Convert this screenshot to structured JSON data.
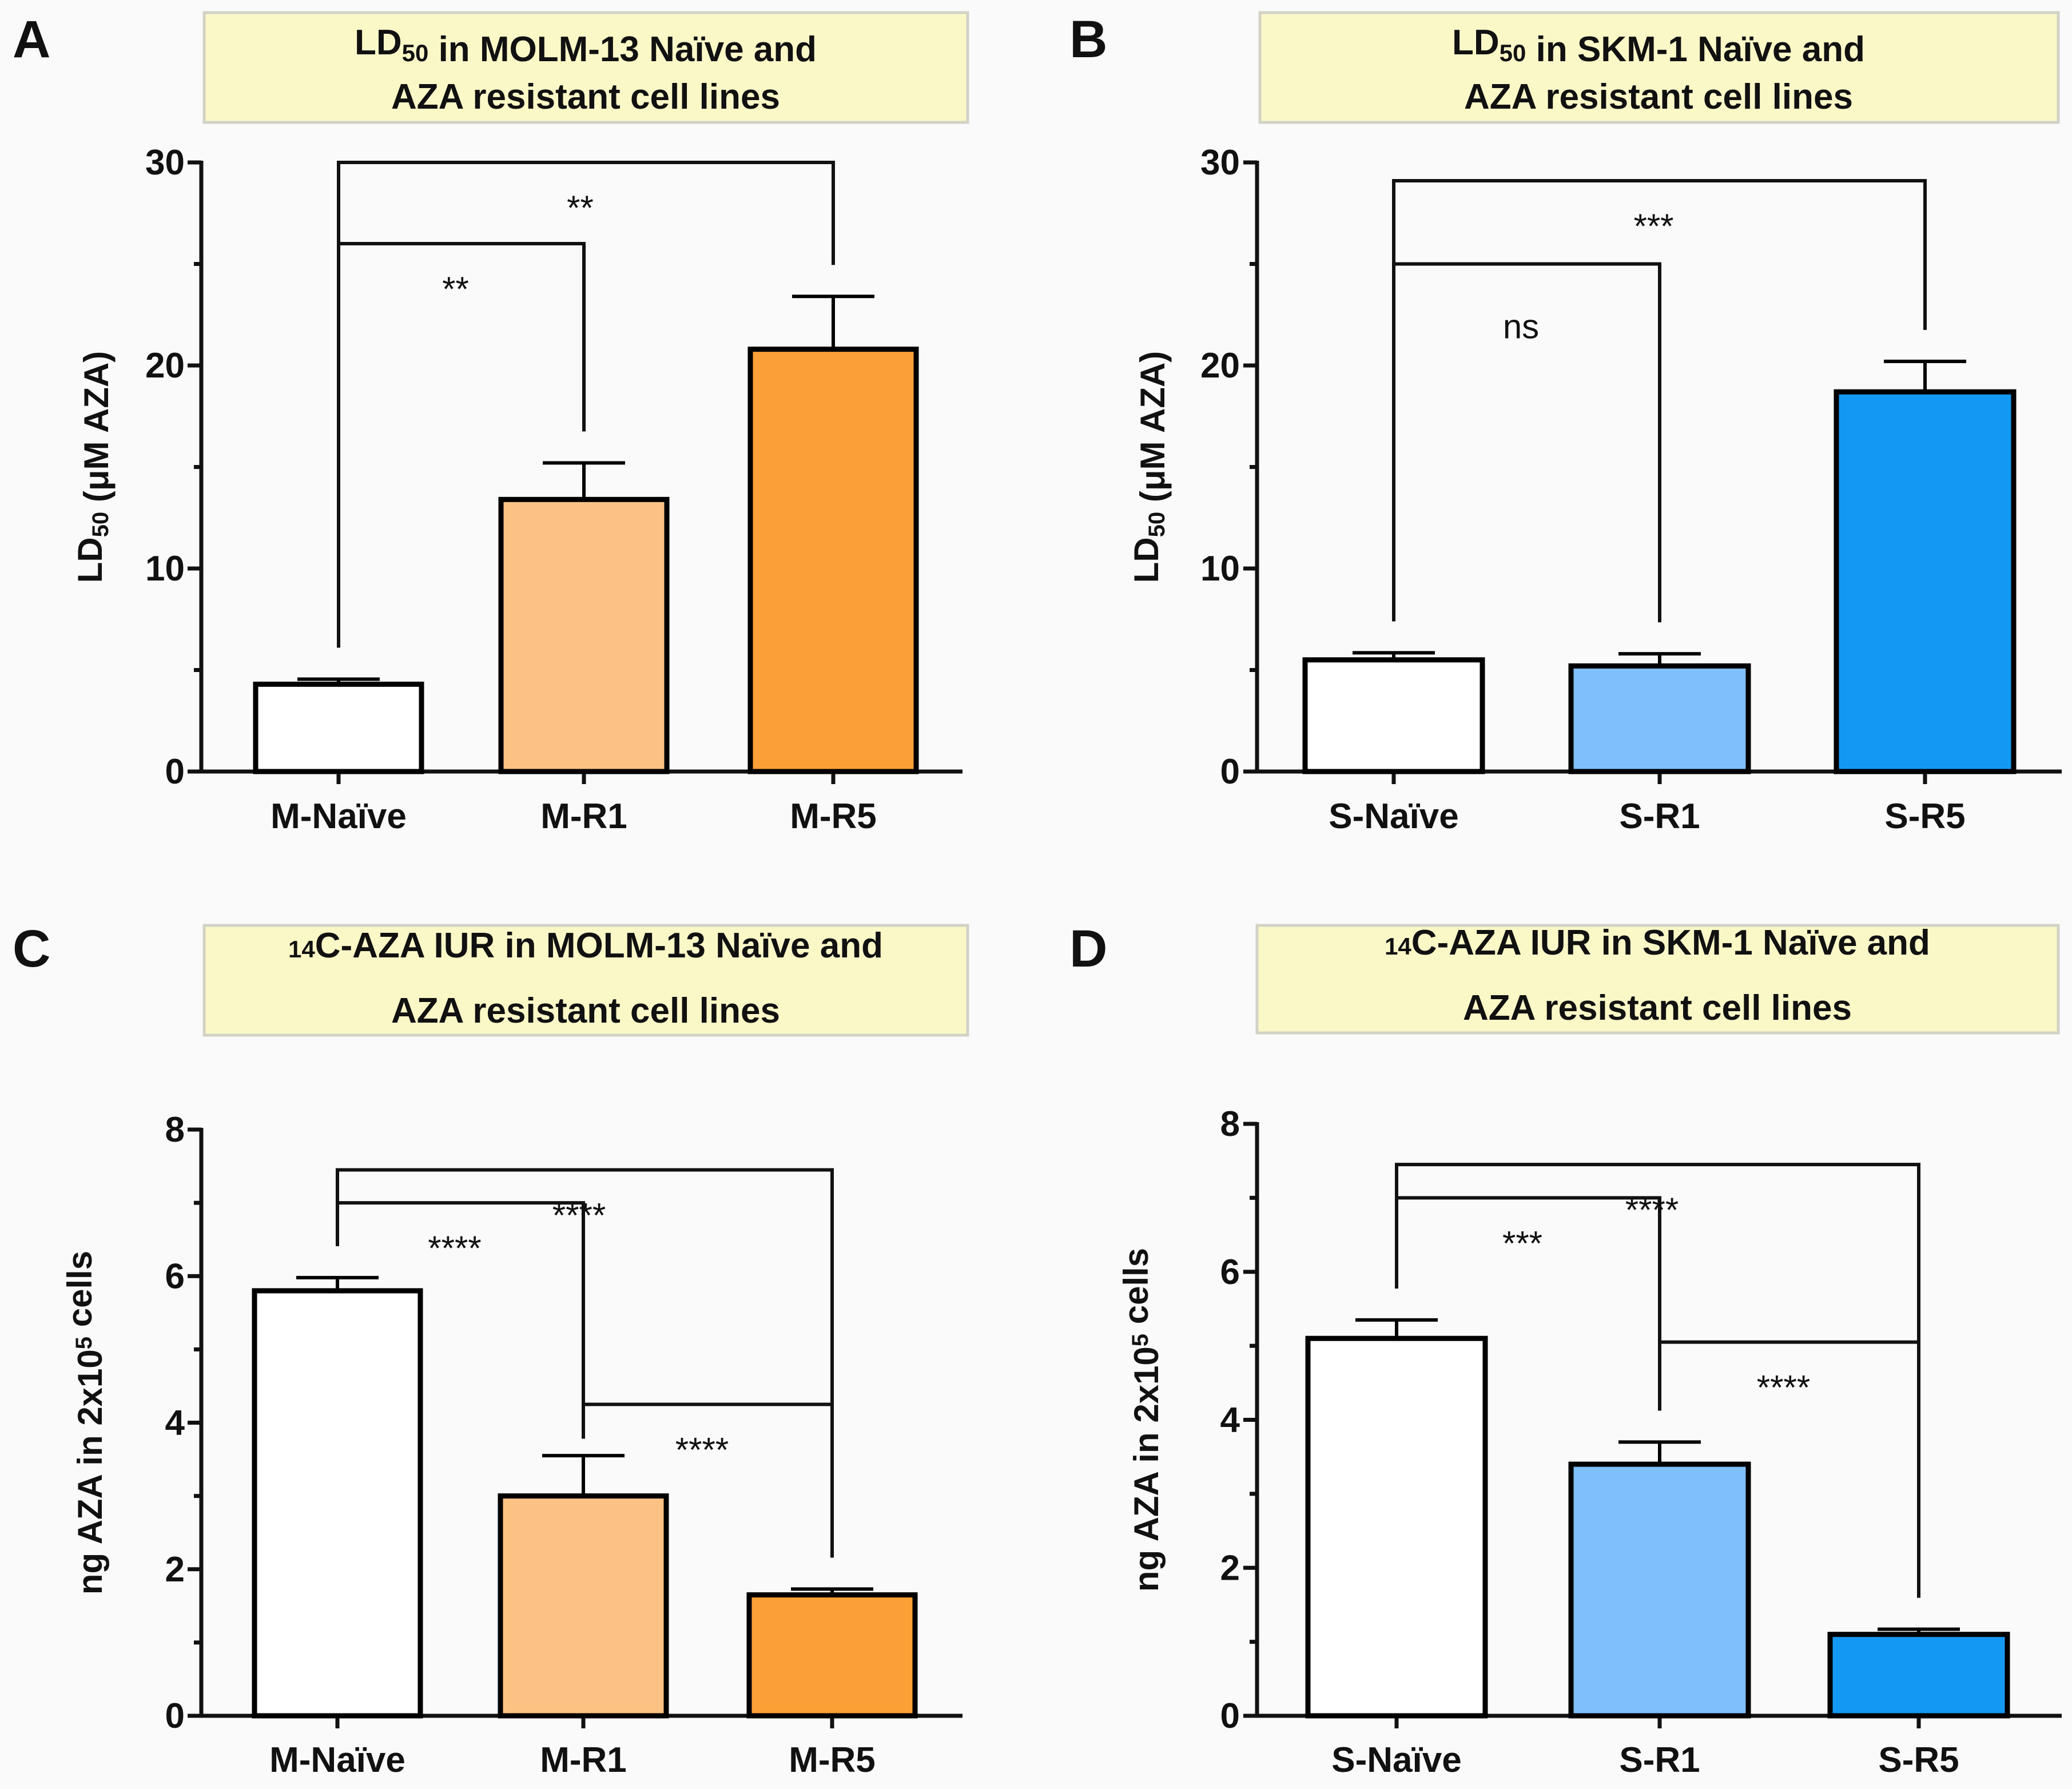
{
  "colors": {
    "white_bar": "#ffffff",
    "light_orange": "#fcc283",
    "orange": "#fba037",
    "light_blue": "#7fc0fb",
    "blue": "#1499f2"
  },
  "chart_data": [
    {
      "id": "A",
      "panel_label": "A",
      "type": "bar",
      "title_lines": [
        {
          "pre": "LD",
          "sub": "50",
          "sup": "",
          "post": " in MOLM-13 Naïve and"
        },
        {
          "pre": "AZA resistant cell lines",
          "sub": "",
          "sup": "",
          "post": ""
        }
      ],
      "ylabel": {
        "pre": "LD",
        "sub": "50",
        "sup": "",
        "post": " (μM AZA)"
      },
      "ylim": [
        0,
        30
      ],
      "yticks": [
        0,
        10,
        20,
        30
      ],
      "categories": [
        "M-Naïve",
        "M-R1",
        "M-R5"
      ],
      "values": [
        4.3,
        13.4,
        20.8
      ],
      "errors": [
        0.25,
        1.8,
        2.6
      ],
      "bar_colors": [
        "#ffffff",
        "#fcc283",
        "#fba037"
      ],
      "comparisons": [
        {
          "from": 0,
          "to": 1,
          "label": "**",
          "level": 26
        },
        {
          "from": 0,
          "to": 2,
          "label": "**",
          "level": 30
        }
      ]
    },
    {
      "id": "B",
      "panel_label": "B",
      "type": "bar",
      "title_lines": [
        {
          "pre": "LD",
          "sub": "50",
          "sup": "",
          "post": " in SKM-1 Naïve and"
        },
        {
          "pre": "AZA resistant cell lines",
          "sub": "",
          "sup": "",
          "post": ""
        }
      ],
      "ylabel": {
        "pre": "LD",
        "sub": "50",
        "sup": "",
        "post": " (μM AZA)"
      },
      "ylim": [
        0,
        30
      ],
      "yticks": [
        0,
        10,
        20,
        30
      ],
      "categories": [
        "S-Naïve",
        "S-R1",
        "S-R5"
      ],
      "values": [
        5.5,
        5.2,
        18.7
      ],
      "errors": [
        0.35,
        0.6,
        1.5
      ],
      "bar_colors": [
        "#ffffff",
        "#7fc0fb",
        "#1499f2"
      ],
      "comparisons": [
        {
          "from": 0,
          "to": 1,
          "label": "ns",
          "level": 25
        },
        {
          "from": 0,
          "to": 2,
          "label": "***",
          "level": 29.1
        }
      ]
    },
    {
      "id": "C",
      "panel_label": "C",
      "type": "bar",
      "title_lines": [
        {
          "pre": "",
          "sub": "",
          "sup": "14",
          "post": "C-AZA IUR in MOLM-13 Naïve and"
        },
        {
          "pre": "AZA resistant cell lines",
          "sub": "",
          "sup": "",
          "post": ""
        }
      ],
      "ylabel": {
        "pre": "ng AZA in 2x10",
        "sub": "",
        "sup": "5",
        "post": " cells"
      },
      "ylim": [
        0,
        8
      ],
      "yticks": [
        0,
        2,
        4,
        6,
        8
      ],
      "categories": [
        "M-Naïve",
        "M-R1",
        "M-R5"
      ],
      "values": [
        5.8,
        3.0,
        1.65
      ],
      "errors": [
        0.18,
        0.55,
        0.08
      ],
      "bar_colors": [
        "#ffffff",
        "#fcc283",
        "#fba037"
      ],
      "comparisons": [
        {
          "from": 0,
          "to": 1,
          "label": "****",
          "level": 7.0
        },
        {
          "from": 0,
          "to": 2,
          "label": "****",
          "level": 7.45
        },
        {
          "from": 1,
          "to": 2,
          "label": "****",
          "level": 4.25
        }
      ]
    },
    {
      "id": "D",
      "panel_label": "D",
      "type": "bar",
      "title_lines": [
        {
          "pre": "",
          "sub": "",
          "sup": "14",
          "post": "C-AZA IUR in SKM-1 Naïve and"
        },
        {
          "pre": "AZA resistant cell lines",
          "sub": "",
          "sup": "",
          "post": ""
        }
      ],
      "ylabel": {
        "pre": "ng AZA in 2x10",
        "sub": "",
        "sup": "5",
        "post": " cells"
      },
      "ylim": [
        0,
        8
      ],
      "yticks": [
        0,
        2,
        4,
        6,
        8
      ],
      "categories": [
        "S-Naïve",
        "S-R1",
        "S-R5"
      ],
      "values": [
        5.1,
        3.4,
        1.1
      ],
      "errors": [
        0.25,
        0.3,
        0.07
      ],
      "bar_colors": [
        "#ffffff",
        "#7fc0fb",
        "#1499f2"
      ],
      "comparisons": [
        {
          "from": 0,
          "to": 1,
          "label": "***",
          "level": 7.0
        },
        {
          "from": 0,
          "to": 2,
          "label": "****",
          "level": 7.45
        },
        {
          "from": 1,
          "to": 2,
          "label": "****",
          "level": 5.05
        }
      ]
    }
  ]
}
